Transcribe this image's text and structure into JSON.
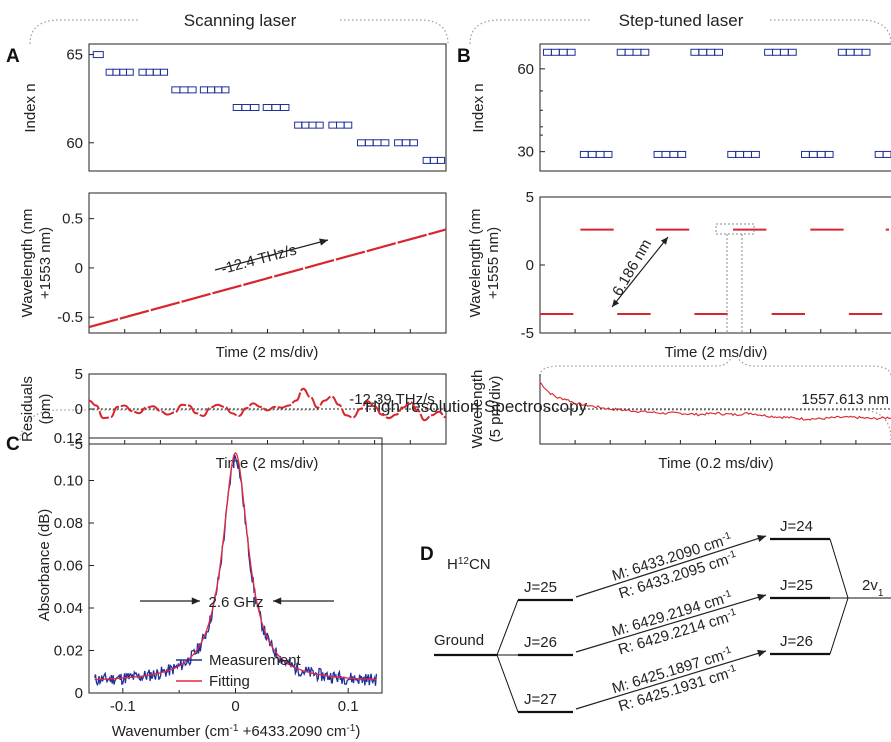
{
  "sections": {
    "scanning": "Scanning laser",
    "step": "Step-tuned laser",
    "spectroscopy": "High-resolution Spectroscopy"
  },
  "panel_labels": {
    "A": "A",
    "B": "B",
    "C": "C",
    "D": "D"
  },
  "chart_data": [
    {
      "id": "A1",
      "type": "scatter",
      "panel": "A",
      "ylabel": "Index n",
      "yticks": [
        65,
        60
      ],
      "ylim": [
        58.4,
        65.6
      ],
      "x_units": "ms",
      "xlim": [
        0,
        20
      ],
      "segments": [
        {
          "n": 65,
          "x": [
            0.3,
            1.0
          ]
        },
        {
          "n": 64,
          "x": [
            1.2,
            3.1
          ]
        },
        {
          "n": 64,
          "x": [
            3.5,
            5.5
          ]
        },
        {
          "n": 63,
          "x": [
            5.8,
            7.5
          ]
        },
        {
          "n": 63,
          "x": [
            7.8,
            9.8
          ]
        },
        {
          "n": 62,
          "x": [
            10.1,
            11.9
          ]
        },
        {
          "n": 62,
          "x": [
            12.2,
            14.0
          ]
        },
        {
          "n": 61,
          "x": [
            14.4,
            16.4
          ]
        },
        {
          "n": 61,
          "x": [
            16.8,
            18.4
          ]
        },
        {
          "n": 60,
          "x": [
            18.8,
            21.0
          ]
        },
        {
          "n": 60,
          "x": [
            21.4,
            23.0
          ]
        },
        {
          "n": 59,
          "x": [
            23.4,
            24.9
          ]
        }
      ],
      "x_max": 25
    },
    {
      "id": "A2",
      "type": "line",
      "panel": "A",
      "ylabel": "Wavelength (nm\n+1553 nm)",
      "xlabel": "Time (2 ms/div)",
      "yticks": [
        0.5,
        0,
        -0.5
      ],
      "ylim": [
        -0.66,
        0.76
      ],
      "x": [
        0,
        25
      ],
      "y": [
        -0.6,
        0.39
      ],
      "annotation": "-12.4 THz/s"
    },
    {
      "id": "A3",
      "type": "line",
      "panel": "A",
      "ylabel": "Residuals\n(pm)",
      "xlabel": "Time (2 ms/div)",
      "yticks": [
        5,
        0,
        -5
      ],
      "ylim": [
        -5,
        5
      ],
      "annotation": "-12.39 THz/s",
      "x": [
        0,
        0.5,
        1,
        1.5,
        2,
        2.5,
        3,
        3.5,
        4,
        4.5,
        5,
        5.5,
        6,
        6.5,
        7,
        7.5,
        8,
        8.5,
        9,
        9.5,
        10,
        10.5,
        11,
        11.5,
        12,
        12.5,
        13,
        13.5,
        14,
        14.5,
        15,
        15.5,
        16,
        16.5,
        17,
        17.5,
        18,
        18.5,
        19,
        19.5,
        20,
        20.5,
        21,
        21.5,
        22,
        22.5,
        23,
        23.5,
        24,
        24.5,
        25
      ],
      "y": [
        1.2,
        0.5,
        -1.3,
        -1.2,
        0.3,
        0.5,
        -0.3,
        -0.6,
        0.2,
        0.4,
        -0.3,
        -0.8,
        -0.5,
        0.6,
        0.5,
        -0.6,
        -1.0,
        0.2,
        0.6,
        0.3,
        -0.6,
        -1.0,
        0.1,
        0.8,
        0.3,
        -0.2,
        0.3,
        0.2,
        0.5,
        1.2,
        2.9,
        1.7,
        0.2,
        1.2,
        1.8,
        0.6,
        -0.9,
        -1.2,
        0.0,
        1.1,
        0.4,
        -0.8,
        -1.3,
        -0.8,
        0.2,
        1.0,
        -0.2,
        -1.6,
        -0.9,
        -0.4,
        -1.2
      ]
    },
    {
      "id": "B1",
      "type": "scatter",
      "panel": "B",
      "ylabel": "Index n",
      "yticks": [
        60,
        30
      ],
      "ylim": [
        23,
        69
      ],
      "x_max": 20,
      "segments": [
        {
          "n": 66,
          "x": [
            0.2,
            2.0
          ]
        },
        {
          "n": 29,
          "x": [
            2.3,
            4.1
          ]
        },
        {
          "n": 66,
          "x": [
            4.4,
            6.2
          ]
        },
        {
          "n": 29,
          "x": [
            6.5,
            8.3
          ]
        },
        {
          "n": 66,
          "x": [
            8.6,
            10.4
          ]
        },
        {
          "n": 29,
          "x": [
            10.7,
            12.5
          ]
        },
        {
          "n": 66,
          "x": [
            12.8,
            14.6
          ]
        },
        {
          "n": 29,
          "x": [
            14.9,
            16.7
          ]
        },
        {
          "n": 66,
          "x": [
            17.0,
            18.8
          ]
        },
        {
          "n": 29,
          "x": [
            19.1,
            20.0
          ]
        }
      ]
    },
    {
      "id": "B2",
      "type": "line",
      "panel": "B",
      "ylabel": "Wavelength (nm\n+1555 nm)",
      "xlabel": "Time (2 ms/div)",
      "yticks": [
        5,
        0,
        -5
      ],
      "ylim": [
        -5,
        5
      ],
      "x_max": 20,
      "segments": [
        {
          "y": -3.6,
          "x": [
            0.0,
            1.9
          ]
        },
        {
          "y": 2.6,
          "x": [
            2.3,
            4.2
          ]
        },
        {
          "y": -3.6,
          "x": [
            4.4,
            6.3
          ]
        },
        {
          "y": 2.6,
          "x": [
            6.6,
            8.5
          ]
        },
        {
          "y": -3.6,
          "x": [
            8.8,
            10.7
          ]
        },
        {
          "y": 2.6,
          "x": [
            11.0,
            12.9
          ]
        },
        {
          "y": -3.6,
          "x": [
            13.2,
            15.1
          ]
        },
        {
          "y": 2.6,
          "x": [
            15.4,
            17.3
          ]
        },
        {
          "y": -3.6,
          "x": [
            17.6,
            19.5
          ]
        },
        {
          "y": 2.6,
          "x": [
            19.7,
            20.0
          ]
        }
      ],
      "annotation": "6.186 nm"
    },
    {
      "id": "B3",
      "type": "line",
      "panel": "B",
      "ylabel": "Wavelength\n(5 pm/div)",
      "xlabel": "Time (0.2 ms/div)",
      "reference": "1557.613 nm",
      "ref_level": 0,
      "ylim": [
        -2.5,
        2.5
      ],
      "x": [
        0,
        0.5,
        1,
        1.5,
        2,
        3,
        4,
        5,
        6,
        7,
        8,
        9,
        10,
        11,
        12,
        13,
        14,
        15,
        16,
        17,
        18,
        19,
        20
      ],
      "y": [
        1.9,
        1.2,
        0.8,
        0.7,
        0.4,
        0.2,
        0.0,
        -0.1,
        -0.2,
        -0.3,
        -0.3,
        -0.4,
        -0.3,
        -0.4,
        -0.3,
        -0.5,
        -0.6,
        -0.7,
        -0.7,
        -0.6,
        -0.6,
        -0.7,
        -0.6
      ]
    },
    {
      "id": "C",
      "type": "line",
      "panel": "C",
      "xlabel": "Wavenumber (cm-1 +6433.2090 cm-1)",
      "ylabel": "Absorbance (dB)",
      "xlim": [
        -0.13,
        0.13
      ],
      "ylim": [
        0,
        0.12
      ],
      "xticks": [
        -0.1,
        0,
        0.1
      ],
      "yticks": [
        0,
        0.02,
        0.04,
        0.06,
        0.08,
        0.1,
        0.12
      ],
      "annotation": "2.6 GHz",
      "series": [
        {
          "name": "Measurement",
          "color": "#1f2f9c",
          "width": 0.0139,
          "peak": 0.111,
          "offset": 0.005,
          "noise": 0.003
        },
        {
          "name": "Fitting",
          "color": "#e8293b",
          "width": 0.0139,
          "peak": 0.113,
          "offset": 0.005,
          "noise": 0
        }
      ],
      "legend": "bottom-center"
    }
  ],
  "panel_d": {
    "molecule": "H",
    "molecule_sup": "12",
    "molecule_rest": "CN",
    "ground": "Ground",
    "lower": [
      "J=25",
      "J=26",
      "J=27"
    ],
    "upper": [
      "J=24",
      "J=25",
      "J=26"
    ],
    "band": "2v",
    "band_sub": "1",
    "transitions": [
      {
        "m": "M: 6433.2090 cm",
        "r": "R: 6433.2095 cm"
      },
      {
        "m": "M: 6429.2194 cm",
        "r": "R: 6429.2214 cm"
      },
      {
        "m": "M: 6425.1897 cm",
        "r": "R: 6425.1931 cm"
      }
    ],
    "unit_sup": "-1",
    "m_color": "#e8293b",
    "r_color": "#3a3aa0"
  },
  "colors": {
    "red": "#d7262e",
    "blue": "#1f2f9c",
    "dark": "#222222"
  }
}
